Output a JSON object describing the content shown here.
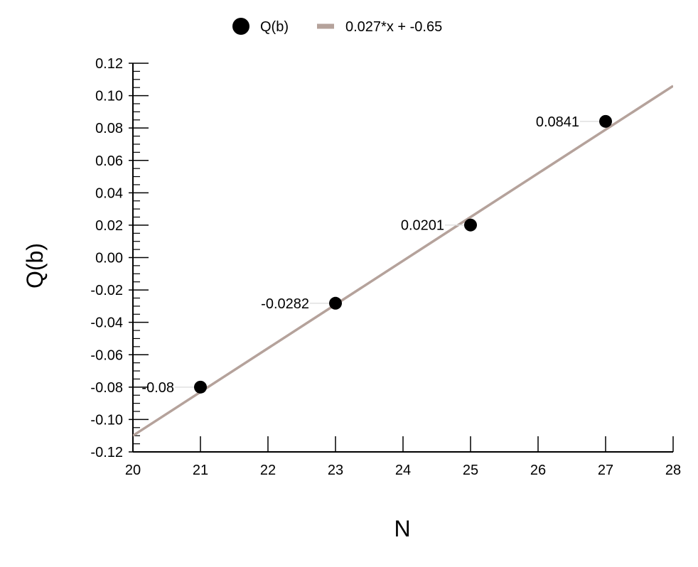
{
  "chart_data": {
    "type": "scatter",
    "xlabel": "N",
    "ylabel": "Q(b)",
    "xlim": [
      20,
      28
    ],
    "ylim": [
      -0.12,
      0.12
    ],
    "x_ticks": [
      20,
      21,
      22,
      23,
      24,
      25,
      26,
      27,
      28
    ],
    "y_ticks": [
      -0.12,
      -0.1,
      -0.08,
      -0.06,
      -0.04,
      -0.02,
      0.0,
      0.02,
      0.04,
      0.06,
      0.08,
      0.1,
      0.12
    ],
    "x_tick_labels": [
      "20",
      "21",
      "22",
      "23",
      "24",
      "25",
      "26",
      "27",
      "28"
    ],
    "y_tick_labels": [
      "-0.12",
      "-0.10",
      "-0.08",
      "-0.06",
      "-0.04",
      "-0.02",
      "0.00",
      "0.02",
      "0.04",
      "0.06",
      "0.08",
      "0.10",
      "0.12"
    ],
    "grid": false,
    "legend_position": "top-center",
    "series": [
      {
        "name": "Q(b)",
        "kind": "scatter",
        "color": "#000000",
        "x": [
          21,
          23,
          25,
          27
        ],
        "y": [
          -0.08,
          -0.0282,
          0.0201,
          0.0841
        ],
        "point_labels": [
          "-0.08",
          "-0.0282",
          "0.0201",
          "0.0841"
        ]
      },
      {
        "name": "0.027*x + -0.65",
        "kind": "line",
        "color": "#b5a29b",
        "slope": 0.027,
        "intercept": -0.65
      }
    ]
  }
}
